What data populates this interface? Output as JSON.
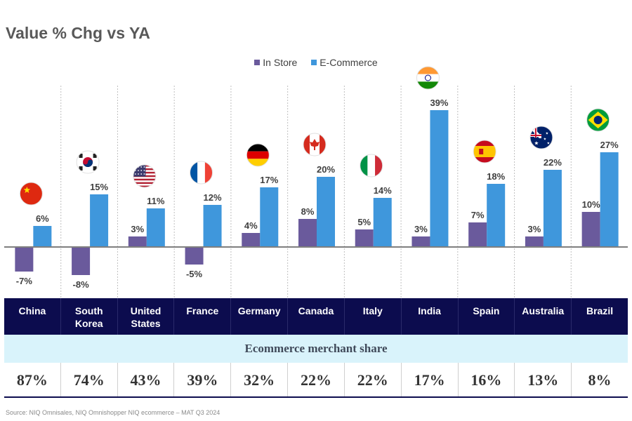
{
  "title": "Value % Chg vs YA",
  "legend": [
    {
      "label": "In Store",
      "color": "#6a5a9c"
    },
    {
      "label": "E-Commerce",
      "color": "#3f97dc"
    }
  ],
  "chart_data": {
    "type": "bar",
    "categories": [
      "China",
      "South\nKorea",
      "United\nStates",
      "France",
      "Germany",
      "Canada",
      "Italy",
      "India",
      "Spain",
      "Australia",
      "Brazil"
    ],
    "series": [
      {
        "name": "In Store",
        "values": [
          -7,
          -8,
          3,
          -5,
          4,
          8,
          5,
          3,
          7,
          3,
          10
        ],
        "labels": [
          "-7%",
          "-8%",
          "3%",
          "-5%",
          "4%",
          "8%",
          "5%",
          "3%",
          "7%",
          "3%",
          "10%"
        ]
      },
      {
        "name": "E-Commerce",
        "values": [
          6,
          15,
          11,
          12,
          17,
          20,
          14,
          39,
          18,
          22,
          27
        ],
        "labels": [
          "6%",
          "15%",
          "11%",
          "12%",
          "17%",
          "20%",
          "14%",
          "39%",
          "18%",
          "22%",
          "27%"
        ]
      }
    ],
    "colors": {
      "in_store": "#6a5a9c",
      "ecommerce": "#3f97dc",
      "separator": "#bfbfbf",
      "baseline": "#7f7f7f"
    },
    "flags": [
      "china-flag-icon",
      "south-korea-flag-icon",
      "united-states-flag-icon",
      "france-flag-icon",
      "germany-flag-icon",
      "canada-flag-icon",
      "italy-flag-icon",
      "india-flag-icon",
      "spain-flag-icon",
      "australia-flag-icon",
      "brazil-flag-icon"
    ],
    "grid": false,
    "legend_position": "top-center"
  },
  "share_header": "Ecommerce merchant share",
  "merchant_share": [
    "87%",
    "74%",
    "43%",
    "39%",
    "32%",
    "22%",
    "22%",
    "17%",
    "16%",
    "13%",
    "8%"
  ],
  "source": "Source: NIQ Omnisales, NIQ Omnishopper NIQ ecommerce – MAT Q3 2024"
}
